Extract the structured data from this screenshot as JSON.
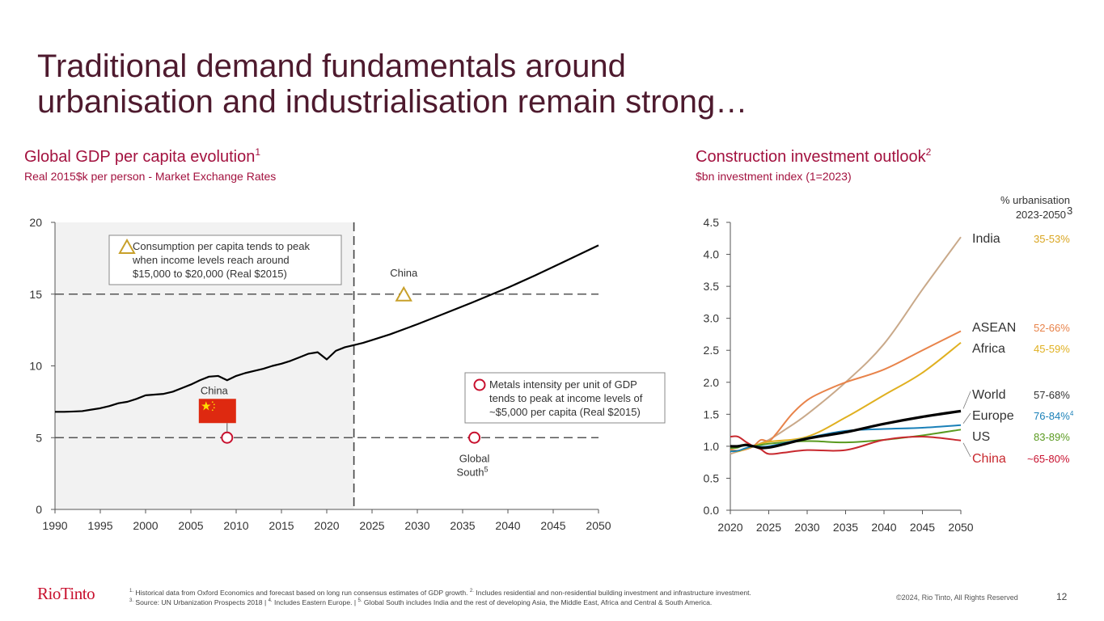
{
  "page": {
    "title_line1": "Traditional demand fundamentals around",
    "title_line2": "urbanisation and industrialisation remain strong…",
    "page_number": "12",
    "copyright": "©2024, Rio Tinto, All Rights Reserved",
    "logo": "RioTinto",
    "footnotes": [
      {
        "n": "1.",
        "text": " Historical data from Oxford Economics and forecast based on long run consensus estimates of GDP growth. "
      },
      {
        "n": "2.",
        "text": " Includes residential and non-residential building investment and infrastructure investment."
      },
      {
        "n": "3.",
        "text": " Source: UN Urbanization Prospects 2018 | "
      },
      {
        "n": "4.",
        "text": " Includes Eastern Europe. | "
      },
      {
        "n": "5.",
        "text": " Global South includes India and the rest of developing Asia, the Middle East, Africa and Central & South America."
      }
    ],
    "accent_color": "#a3123f",
    "title_color": "#4e1a2e"
  },
  "chart_data": [
    {
      "type": "line",
      "title": "Global GDP per capita evolution",
      "title_sup": "1",
      "subtitle": "Real 2015$k per person - Market Exchange Rates",
      "xlabel": "",
      "ylabel": "",
      "xlim": [
        1990,
        2050
      ],
      "ylim": [
        0,
        20
      ],
      "x_ticks": [
        "1990",
        "1995",
        "2000",
        "2005",
        "2010",
        "2015",
        "2020",
        "2025",
        "2030",
        "2035",
        "2040",
        "2045",
        "2050"
      ],
      "y_ticks": [
        "0",
        "5",
        "10",
        "15",
        "20"
      ],
      "historical_shade_until": 2023,
      "reference_lines": [
        5,
        15
      ],
      "series": [
        {
          "name": "Global GDP per capita",
          "color": "#000000",
          "x": [
            1990,
            1991,
            1992,
            1993,
            1994,
            1995,
            1996,
            1997,
            1998,
            1999,
            2000,
            2001,
            2002,
            2003,
            2004,
            2005,
            2006,
            2007,
            2008,
            2009,
            2010,
            2011,
            2012,
            2013,
            2014,
            2015,
            2016,
            2017,
            2018,
            2019,
            2020,
            2021,
            2022,
            2023,
            2024,
            2025,
            2027,
            2030,
            2033,
            2036,
            2040,
            2043,
            2046,
            2050
          ],
          "y": [
            6.8,
            6.8,
            6.82,
            6.85,
            6.95,
            7.05,
            7.2,
            7.4,
            7.5,
            7.7,
            7.95,
            8.0,
            8.05,
            8.2,
            8.45,
            8.7,
            9.0,
            9.25,
            9.3,
            9.0,
            9.3,
            9.5,
            9.65,
            9.8,
            10.0,
            10.15,
            10.35,
            10.6,
            10.85,
            10.95,
            10.45,
            11.05,
            11.3,
            11.45,
            11.6,
            11.8,
            12.2,
            12.9,
            13.65,
            14.4,
            15.45,
            16.3,
            17.2,
            18.4
          ]
        }
      ],
      "annotations": [
        {
          "id": "consumption",
          "marker": "triangle",
          "marker_color": "#c8a02a",
          "text": [
            "Consumption per capita tends to peak",
            "when income levels reach around",
            "$15,000 to $20,000 (Real $2015)"
          ]
        },
        {
          "id": "metals",
          "marker": "circle",
          "marker_color": "#c8102e",
          "text": [
            "Metals intensity per unit of GDP",
            "tends to peak at income levels of",
            "~$5,000 per capita (Real $2015)"
          ]
        }
      ],
      "points": [
        {
          "label": "China",
          "x": 2028.5,
          "y": 15,
          "marker": "triangle",
          "color": "#c8a02a"
        },
        {
          "label": "China",
          "x": 2009,
          "y": 5,
          "marker": "circle",
          "color": "#c8102e",
          "flag": "china-flag"
        },
        {
          "label": "Global South",
          "label_sup": "5",
          "x": 2036.3,
          "y": 5,
          "marker": "circle",
          "color": "#c8102e"
        }
      ]
    },
    {
      "type": "line",
      "title": "Construction investment outlook",
      "title_sup": "2",
      "subtitle": "$bn investment index (1=2023)",
      "xlabel": "",
      "ylabel": "",
      "xlim": [
        2020,
        2050
      ],
      "ylim": [
        0,
        4.5
      ],
      "x_ticks": [
        "2020",
        "2025",
        "2030",
        "2035",
        "2040",
        "2045",
        "2050"
      ],
      "y_ticks": [
        "0.0",
        "0.5",
        "1.0",
        "1.5",
        "2.0",
        "2.5",
        "3.0",
        "3.5",
        "4.0",
        "4.5"
      ],
      "legend_header": "% urbanisation",
      "legend_header2": "2023-2050",
      "legend_header_sup": "3",
      "legend_placement": "right",
      "series": [
        {
          "name": "India",
          "urbanisation": "35-53%",
          "color": "#c9a98a",
          "label_color": "#333333",
          "pct_color": "#d9a520",
          "x": [
            2020,
            2021,
            2022,
            2023,
            2024,
            2025,
            2027,
            2030,
            2035,
            2040,
            2045,
            2050
          ],
          "y": [
            0.88,
            0.92,
            0.97,
            1.0,
            1.05,
            1.1,
            1.25,
            1.5,
            2.0,
            2.6,
            3.45,
            4.27
          ]
        },
        {
          "name": "ASEAN",
          "urbanisation": "52-66%",
          "color": "#e8834a",
          "label_color": "#333333",
          "pct_color": "#e8834a",
          "x": [
            2020,
            2021,
            2022,
            2023,
            2024,
            2025,
            2026,
            2028,
            2030,
            2032,
            2035,
            2040,
            2045,
            2050
          ],
          "y": [
            0.95,
            0.93,
            0.95,
            1.0,
            1.1,
            1.08,
            1.2,
            1.5,
            1.72,
            1.85,
            2.0,
            2.2,
            2.5,
            2.8
          ]
        },
        {
          "name": "Africa",
          "urbanisation": "45-59%",
          "color": "#e0b020",
          "label_color": "#333333",
          "pct_color": "#e0b020",
          "x": [
            2020,
            2021,
            2022,
            2023,
            2025,
            2030,
            2035,
            2040,
            2045,
            2050
          ],
          "y": [
            0.93,
            0.92,
            0.96,
            1.0,
            1.07,
            1.15,
            1.45,
            1.8,
            2.15,
            2.62
          ]
        },
        {
          "name": "World",
          "urbanisation": "57-68%",
          "color": "#000000",
          "label_color": "#333333",
          "pct_color": "#333333",
          "x": [
            2020,
            2021,
            2022,
            2023,
            2025,
            2030,
            2035,
            2040,
            2045,
            2050
          ],
          "y": [
            1.0,
            1.0,
            1.02,
            1.0,
            0.98,
            1.12,
            1.22,
            1.35,
            1.46,
            1.55
          ]
        },
        {
          "name": "Europe",
          "urbanisation": "76-84%",
          "urbanisation_sup": "4",
          "color": "#1a80b8",
          "label_color": "#333333",
          "pct_color": "#1a80b8",
          "x": [
            2020,
            2021,
            2022,
            2023,
            2025,
            2030,
            2035,
            2040,
            2045,
            2050
          ],
          "y": [
            0.92,
            0.93,
            0.97,
            1.0,
            1.0,
            1.13,
            1.24,
            1.27,
            1.29,
            1.33
          ]
        },
        {
          "name": "US",
          "urbanisation": "83-89%",
          "color": "#5a9a20",
          "label_color": "#333333",
          "pct_color": "#5a9a20",
          "x": [
            2020,
            2021,
            2022,
            2023,
            2025,
            2030,
            2035,
            2040,
            2045,
            2050
          ],
          "y": [
            0.97,
            0.98,
            1.03,
            1.0,
            1.04,
            1.08,
            1.06,
            1.1,
            1.17,
            1.26
          ]
        },
        {
          "name": "China",
          "urbanisation": "~65-80%",
          "color": "#c8282e",
          "label_color": "#c8282e",
          "pct_color": "#c8102e",
          "x": [
            2020,
            2021,
            2022,
            2023,
            2024,
            2025,
            2027,
            2030,
            2035,
            2040,
            2045,
            2050
          ],
          "y": [
            1.15,
            1.15,
            1.07,
            1.0,
            0.95,
            0.88,
            0.9,
            0.94,
            0.94,
            1.1,
            1.15,
            1.09
          ]
        }
      ]
    }
  ]
}
